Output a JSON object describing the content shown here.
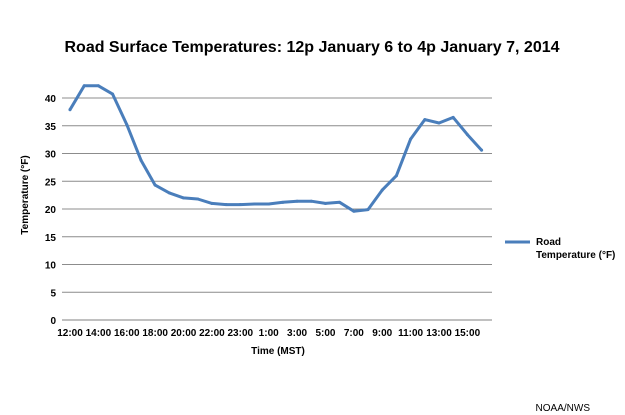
{
  "chart_data": {
    "type": "line",
    "title": "Road Surface Temperatures: 12p January 6 to 4p January 7, 2014",
    "xlabel": "Time (MST)",
    "ylabel": "Temperature (°F)",
    "ylim": [
      0,
      40
    ],
    "y_ticks": [
      "0",
      "5",
      "10",
      "15",
      "20",
      "25",
      "30",
      "35",
      "40"
    ],
    "grid": true,
    "legend_position": "right",
    "x": [
      "12:00",
      "13:00",
      "14:00",
      "15:00",
      "16:00",
      "17:00",
      "18:00",
      "19:00",
      "20:00",
      "21:00",
      "22:00",
      "22:00",
      "23:00",
      "0:00",
      "1:00",
      "2:00",
      "3:00",
      "4:00",
      "5:00",
      "6:00",
      "7:00",
      "8:00",
      "9:00",
      "10:00",
      "11:00",
      "12:00",
      "13:00",
      "14:00",
      "15:00",
      "16:00"
    ],
    "x_tick_labels": [
      "12:00",
      "14:00",
      "16:00",
      "18:00",
      "20:00",
      "22:00",
      "23:00",
      "1:00",
      "3:00",
      "5:00",
      "7:00",
      "9:00",
      "11:00",
      "13:00",
      "15:00"
    ],
    "series": [
      {
        "name": "Road Temperature (°F)",
        "color": "#4a7ebb",
        "values": [
          37.9,
          42.2,
          42.2,
          40.7,
          35.2,
          28.8,
          24.3,
          22.9,
          22.0,
          21.8,
          21.0,
          20.8,
          20.8,
          20.9,
          20.9,
          21.2,
          21.4,
          21.4,
          21.0,
          21.2,
          19.6,
          19.9,
          23.4,
          26.0,
          32.6,
          36.1,
          35.5,
          36.5,
          33.4,
          30.6
        ]
      }
    ]
  },
  "legend": {
    "line1": "Road",
    "line2": "Temperature (°F)"
  },
  "credit": "NOAA/NWS"
}
